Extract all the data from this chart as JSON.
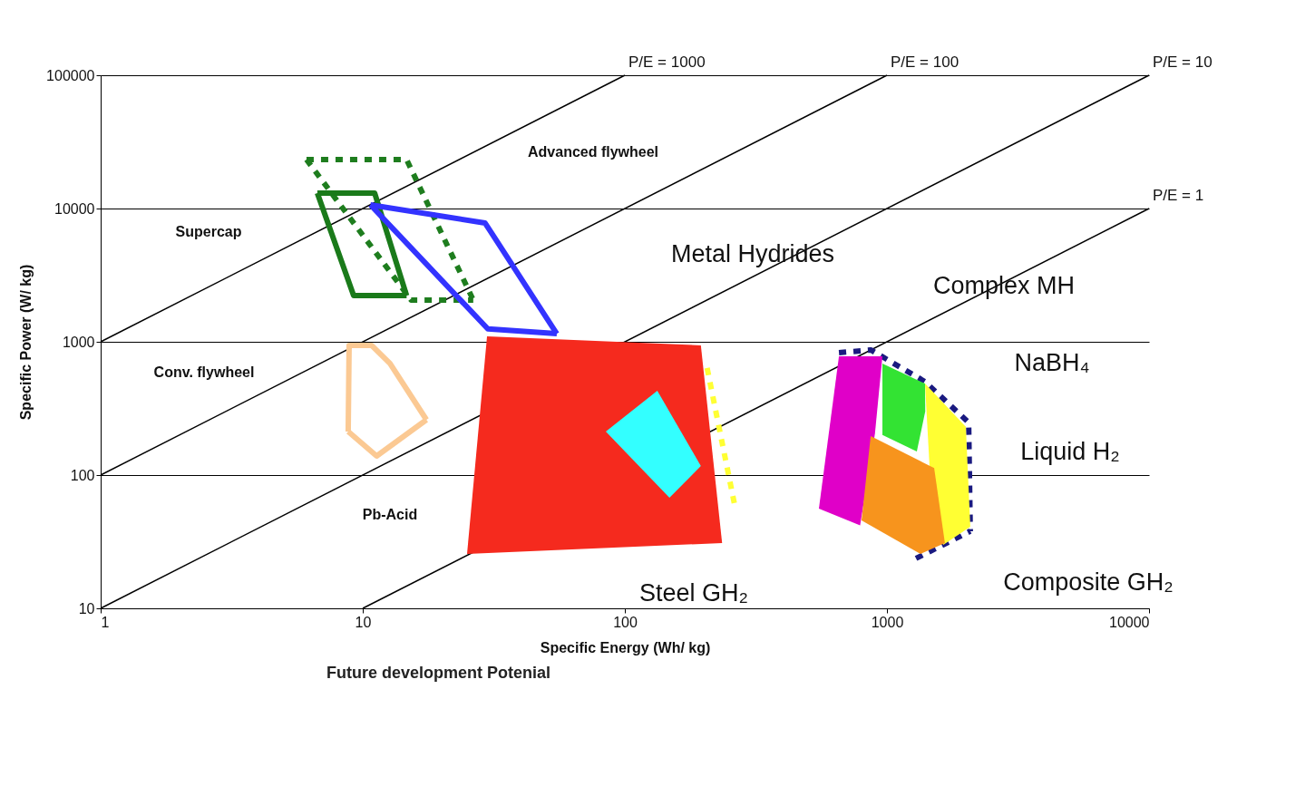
{
  "chart_data": {
    "type": "line",
    "xlabel": "Specific Energy (Wh/ kg)",
    "ylabel": "Specific Power (W/ kg)",
    "log": "xy",
    "grid": "y",
    "xlim": [
      1,
      10000
    ],
    "ylim": [
      10,
      100000
    ],
    "xticks": [
      1,
      10,
      100,
      1000,
      10000
    ],
    "yticks": [
      10,
      100,
      1000,
      10000,
      100000
    ],
    "series": [
      {
        "name": "P/E = 1000",
        "color": "#000000",
        "x": [
          1,
          100
        ],
        "values": [
          1000,
          100000
        ]
      },
      {
        "name": "P/E = 100",
        "color": "#000000",
        "x": [
          1,
          1000
        ],
        "values": [
          100,
          100000
        ]
      },
      {
        "name": "P/E = 10",
        "color": "#000000",
        "x": [
          1,
          10000
        ],
        "values": [
          10,
          100000
        ]
      },
      {
        "name": "P/E = 1",
        "color": "#000000",
        "x": [
          10,
          10000
        ],
        "values": [
          10,
          10000
        ]
      },
      {
        "color": "#1e7d1e",
        "line_style": "dotted",
        "x": [
          6.1,
          14.7,
          26.4
        ],
        "values": [
          23300,
          23300,
          2055
        ]
      },
      {
        "color": "#1e7d1e",
        "line_style": "dotted",
        "x": [
          6.1,
          15.3,
          26.4
        ],
        "values": [
          23300,
          2055,
          2055
        ]
      },
      {
        "color": "#1a7a1a",
        "x": [
          6.71,
          11.1,
          14.7
        ],
        "values": [
          13060,
          13060,
          2220
        ]
      },
      {
        "color": "#1a7a1a",
        "x": [
          6.71,
          9.23,
          14.7
        ],
        "values": [
          13060,
          2220,
          2220
        ]
      },
      {
        "color": "#3333ff",
        "x": [
          10.7,
          29.3,
          55
        ],
        "values": [
          10640,
          7780,
          1150
        ]
      },
      {
        "color": "#3333ff",
        "x": [
          10.7,
          30,
          55
        ],
        "values": [
          10640,
          1250,
          1150
        ]
      },
      {
        "color": "#fbc993",
        "x": [
          8.8,
          8.87,
          10.8,
          12.7,
          17.5
        ],
        "values": [
          212,
          940,
          940,
          687,
          260
        ]
      },
      {
        "color": "#fbc993",
        "x": [
          8.8,
          11.3,
          17.5
        ],
        "values": [
          212,
          139,
          260
        ]
      },
      {
        "type": "area",
        "color": "#f52a1e",
        "x": [
          29.8,
          195,
          235,
          25,
          29.8
        ],
        "values": [
          1100,
          940,
          30.9,
          25.6,
          1100
        ]
      },
      {
        "color": "#ffff33",
        "line_style": "dotted",
        "x": [
          206,
          262
        ],
        "values": [
          636,
          60.5
        ]
      },
      {
        "type": "area",
        "color": "#33ffff",
        "x": [
          84.6,
          133,
          195,
          148,
          84.6
        ],
        "values": [
          212,
          430,
          117,
          67.6,
          212
        ]
      },
      {
        "color": "#1a1a80",
        "line_style": "dotted",
        "x": [
          656,
          867,
          1397,
          2050,
          2080
        ],
        "values": [
          828,
          869,
          502,
          248,
          37.9
        ]
      },
      {
        "color": "#1a1a80",
        "line_style": "dotted",
        "x": [
          1291,
          2080
        ],
        "values": [
          23.7,
          37.9
        ]
      },
      {
        "type": "area",
        "color": "#e000c8",
        "x": [
          656,
          961,
          900,
          790,
          550,
          656
        ],
        "values": [
          778,
          778,
          205,
          42,
          56,
          778
        ]
      },
      {
        "type": "area",
        "color": "#33e333",
        "x": [
          961,
          1397,
          1400,
          1300,
          961,
          961
        ],
        "values": [
          687,
          486,
          300,
          150,
          200,
          687
        ]
      },
      {
        "type": "area",
        "color": "#ffff33",
        "x": [
          1397,
          2000,
          2080,
          1640,
          1455,
          1397
        ],
        "values": [
          486,
          230,
          40.9,
          29.9,
          113,
          486
        ]
      },
      {
        "type": "area",
        "color": "#f7941d",
        "x": [
          867,
          1514,
          1664,
          1343,
          800,
          867
        ],
        "values": [
          196,
          113,
          30.9,
          25.6,
          45.7,
          196
        ]
      }
    ],
    "annotations": [
      "Supercap",
      "Advanced flywheel",
      "Conv. flywheel",
      "Pb-Acid",
      "Metal Hydrides",
      "Complex MH",
      "NaBH₄",
      "Liquid H₂",
      "Steel GH₂",
      "Composite GH₂",
      "Future development Potenial"
    ]
  }
}
